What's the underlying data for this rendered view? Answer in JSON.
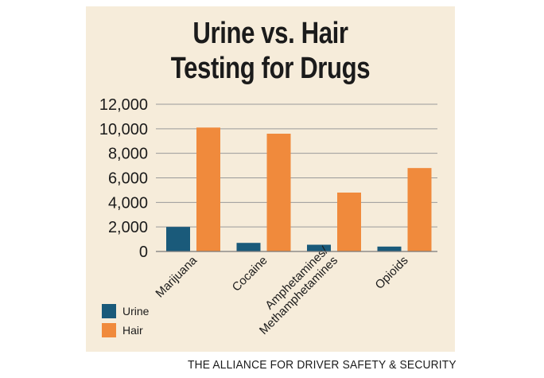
{
  "title_lines": [
    "Urine vs. Hair",
    "Testing for Drugs"
  ],
  "credit": "THE ALLIANCE FOR DRIVER SAFETY & SECURITY",
  "colors": {
    "urine": "#1a5a7a",
    "hair": "#f08a3c",
    "panel": "#f6ecda",
    "grid": "#9a9a9a"
  },
  "chart_data": {
    "type": "bar",
    "categories": [
      "Marijuana",
      "Cocaine",
      "Amphetamines/\nMethamphetamines",
      "Opioids"
    ],
    "series": [
      {
        "name": "Urine",
        "values": [
          2000,
          700,
          550,
          400
        ]
      },
      {
        "name": "Hair",
        "values": [
          10100,
          9600,
          4800,
          6800
        ]
      }
    ],
    "ylim": [
      0,
      12000
    ],
    "yticks": [
      0,
      2000,
      4000,
      6000,
      8000,
      10000,
      12000
    ],
    "ytick_labels": [
      "0",
      "2,000",
      "4,000",
      "6,000",
      "8,000",
      "10,000",
      "12,000"
    ],
    "grid": true,
    "legend_position": "bottom-left"
  }
}
